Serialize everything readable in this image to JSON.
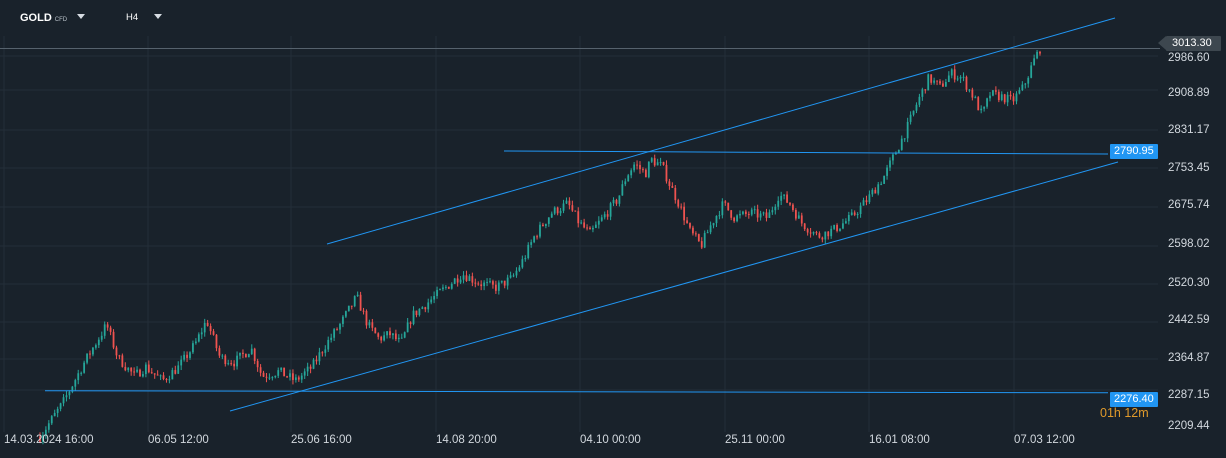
{
  "toolbar": {
    "symbol": "GOLD",
    "symbol_badge": "CFD",
    "timeframe": "H4",
    "symbol_dropdown_icon": "chevron-down-icon",
    "timeframe_dropdown_icon": "chevron-down-icon"
  },
  "current_price_label": "3013.30",
  "countdown": "01h 12m",
  "colors": {
    "background": "#19222b",
    "bull": "#26a69a",
    "bear": "#ef5350",
    "trendline": "#2196f3",
    "grid": "#242e38",
    "price_line": "#56626d"
  },
  "chart_data": {
    "type": "candlestick",
    "timeframe": "H4",
    "y_tick_labels": [
      "2986.60",
      "2908.89",
      "2831.17",
      "2753.45",
      "2675.74",
      "2598.02",
      "2520.30",
      "2442.59",
      "2364.87",
      "2287.15",
      "2209.44"
    ],
    "x_tick_labels": [
      "14.03.2024  16:00",
      "06.05  12:00",
      "25.06  16:00",
      "14.08  20:00",
      "04.10  00:00",
      "25.11  00:00",
      "16.01  08:00",
      "07.03  12:00"
    ],
    "ylim": [
      2190,
      3040
    ],
    "current_price": 3013.3,
    "horizontal_levels": [
      {
        "label": "2790.95",
        "value": 2790.95
      },
      {
        "label": "2276.40",
        "value": 2276.4
      }
    ],
    "close_path": [
      {
        "x": 0,
        "y": 2180
      },
      {
        "x": 20,
        "y": 2250
      },
      {
        "x": 40,
        "y": 2340
      },
      {
        "x": 60,
        "y": 2420
      },
      {
        "x": 70,
        "y": 2350
      },
      {
        "x": 85,
        "y": 2310
      },
      {
        "x": 95,
        "y": 2330
      },
      {
        "x": 110,
        "y": 2300
      },
      {
        "x": 125,
        "y": 2330
      },
      {
        "x": 140,
        "y": 2380
      },
      {
        "x": 150,
        "y": 2430
      },
      {
        "x": 162,
        "y": 2350
      },
      {
        "x": 175,
        "y": 2340
      },
      {
        "x": 190,
        "y": 2370
      },
      {
        "x": 200,
        "y": 2310
      },
      {
        "x": 215,
        "y": 2320
      },
      {
        "x": 230,
        "y": 2300
      },
      {
        "x": 245,
        "y": 2330
      },
      {
        "x": 255,
        "y": 2370
      },
      {
        "x": 270,
        "y": 2420
      },
      {
        "x": 285,
        "y": 2480
      },
      {
        "x": 295,
        "y": 2420
      },
      {
        "x": 305,
        "y": 2390
      },
      {
        "x": 315,
        "y": 2400
      },
      {
        "x": 325,
        "y": 2380
      },
      {
        "x": 335,
        "y": 2440
      },
      {
        "x": 350,
        "y": 2470
      },
      {
        "x": 365,
        "y": 2500
      },
      {
        "x": 380,
        "y": 2530
      },
      {
        "x": 395,
        "y": 2510
      },
      {
        "x": 410,
        "y": 2500
      },
      {
        "x": 425,
        "y": 2520
      },
      {
        "x": 435,
        "y": 2560
      },
      {
        "x": 445,
        "y": 2610
      },
      {
        "x": 460,
        "y": 2660
      },
      {
        "x": 475,
        "y": 2680
      },
      {
        "x": 485,
        "y": 2640
      },
      {
        "x": 495,
        "y": 2615
      },
      {
        "x": 510,
        "y": 2660
      },
      {
        "x": 520,
        "y": 2690
      },
      {
        "x": 528,
        "y": 2740
      },
      {
        "x": 535,
        "y": 2765
      },
      {
        "x": 545,
        "y": 2745
      },
      {
        "x": 550,
        "y": 2775
      },
      {
        "x": 560,
        "y": 2760
      },
      {
        "x": 567,
        "y": 2720
      },
      {
        "x": 575,
        "y": 2680
      },
      {
        "x": 585,
        "y": 2620
      },
      {
        "x": 595,
        "y": 2590
      },
      {
        "x": 605,
        "y": 2640
      },
      {
        "x": 615,
        "y": 2680
      },
      {
        "x": 625,
        "y": 2650
      },
      {
        "x": 640,
        "y": 2660
      },
      {
        "x": 655,
        "y": 2650
      },
      {
        "x": 665,
        "y": 2700
      },
      {
        "x": 675,
        "y": 2680
      },
      {
        "x": 685,
        "y": 2640
      },
      {
        "x": 700,
        "y": 2610
      },
      {
        "x": 715,
        "y": 2625
      },
      {
        "x": 730,
        "y": 2650
      },
      {
        "x": 745,
        "y": 2690
      },
      {
        "x": 760,
        "y": 2740
      },
      {
        "x": 770,
        "y": 2790
      },
      {
        "x": 780,
        "y": 2840
      },
      {
        "x": 790,
        "y": 2900
      },
      {
        "x": 800,
        "y": 2950
      },
      {
        "x": 810,
        "y": 2930
      },
      {
        "x": 820,
        "y": 2960
      },
      {
        "x": 830,
        "y": 2950
      },
      {
        "x": 840,
        "y": 2910
      },
      {
        "x": 848,
        "y": 2870
      },
      {
        "x": 855,
        "y": 2915
      },
      {
        "x": 865,
        "y": 2910
      },
      {
        "x": 875,
        "y": 2900
      },
      {
        "x": 885,
        "y": 2930
      },
      {
        "x": 895,
        "y": 2990
      },
      {
        "x": 900,
        "y": 3013
      }
    ]
  }
}
